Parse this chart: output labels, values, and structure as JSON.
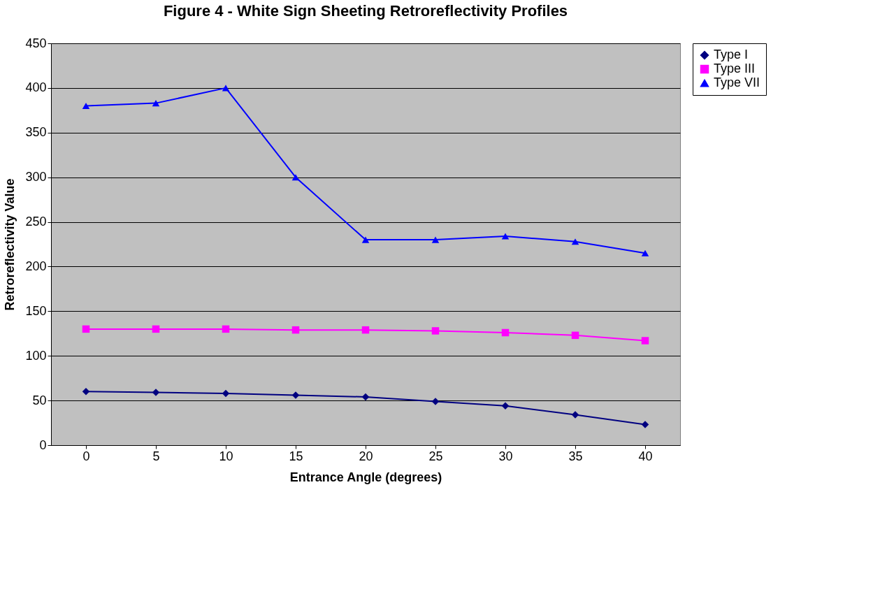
{
  "chart_data": {
    "type": "line",
    "title": "Figure 4 - White Sign Sheeting Retroreflectivity Profiles",
    "xlabel": "Entrance Angle (degrees)",
    "ylabel": "Retroreflectivity Value",
    "categories": [
      "0",
      "5",
      "10",
      "15",
      "20",
      "25",
      "30",
      "35",
      "40"
    ],
    "series": [
      {
        "name": "Type I",
        "color": "#000080",
        "marker": "diamond",
        "values": [
          60,
          59,
          58,
          56,
          54,
          49,
          44,
          34,
          23
        ]
      },
      {
        "name": "Type III",
        "color": "#ff00ff",
        "marker": "square",
        "values": [
          130,
          130,
          130,
          129,
          129,
          128,
          126,
          123,
          117
        ]
      },
      {
        "name": "Type VII",
        "color": "#0000ff",
        "marker": "triangle",
        "values": [
          380,
          383,
          400,
          300,
          230,
          230,
          234,
          228,
          215
        ]
      }
    ],
    "ylim": [
      0,
      450
    ],
    "yticks": [
      0,
      50,
      100,
      150,
      200,
      250,
      300,
      350,
      400,
      450
    ],
    "grid": "y",
    "legend": "right"
  }
}
